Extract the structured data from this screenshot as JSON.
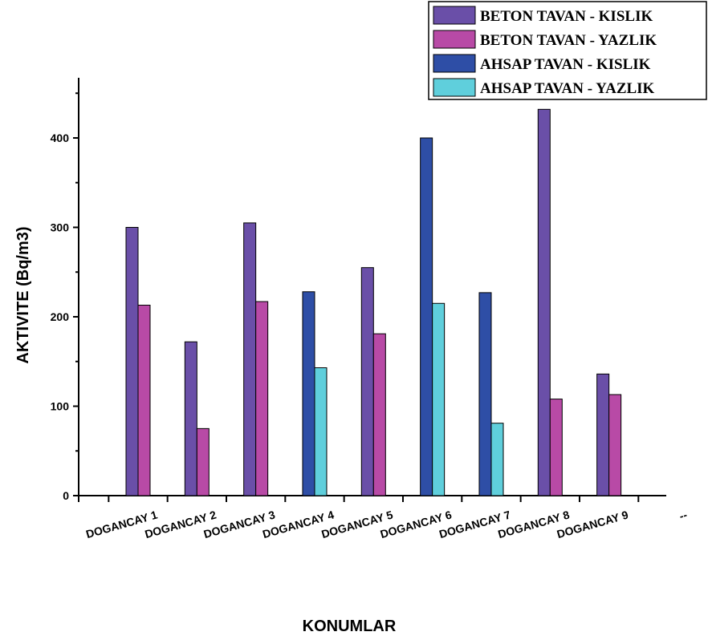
{
  "chart_data": {
    "type": "bar",
    "xlabel": "KONUMLAR",
    "ylabel": "AKTIVITE (Bq/m3)",
    "ylim": [
      0,
      450
    ],
    "yticks": [
      0,
      100,
      200,
      300,
      400
    ],
    "legend_position": "top-right",
    "categories": [
      "DOGANCAY 1",
      "DOGANCAY 2",
      "DOGANCAY 3",
      "DOGANCAY 4",
      "DOGANCAY 5",
      "DOGANCAY 6",
      "DOGANCAY 7",
      "DOGANCAY 8",
      "DOGANCAY 9",
      "--"
    ],
    "series": [
      {
        "name": "BETON TAVAN - KISLIK",
        "color": "#6a4fa8",
        "values": [
          300,
          172,
          305,
          null,
          255,
          null,
          null,
          432,
          136,
          null
        ]
      },
      {
        "name": "BETON TAVAN - YAZLIK",
        "color": "#b84aa6",
        "values": [
          213,
          75,
          217,
          null,
          181,
          null,
          null,
          108,
          113,
          null
        ]
      },
      {
        "name": "AHSAP TAVAN - KISLIK",
        "color": "#2e4ea6",
        "values": [
          null,
          null,
          null,
          228,
          null,
          400,
          227,
          null,
          null,
          null
        ]
      },
      {
        "name": "AHSAP TAVAN - YAZLIK",
        "color": "#5fcfdc",
        "values": [
          null,
          null,
          null,
          143,
          null,
          215,
          81,
          null,
          null,
          null
        ]
      }
    ]
  }
}
